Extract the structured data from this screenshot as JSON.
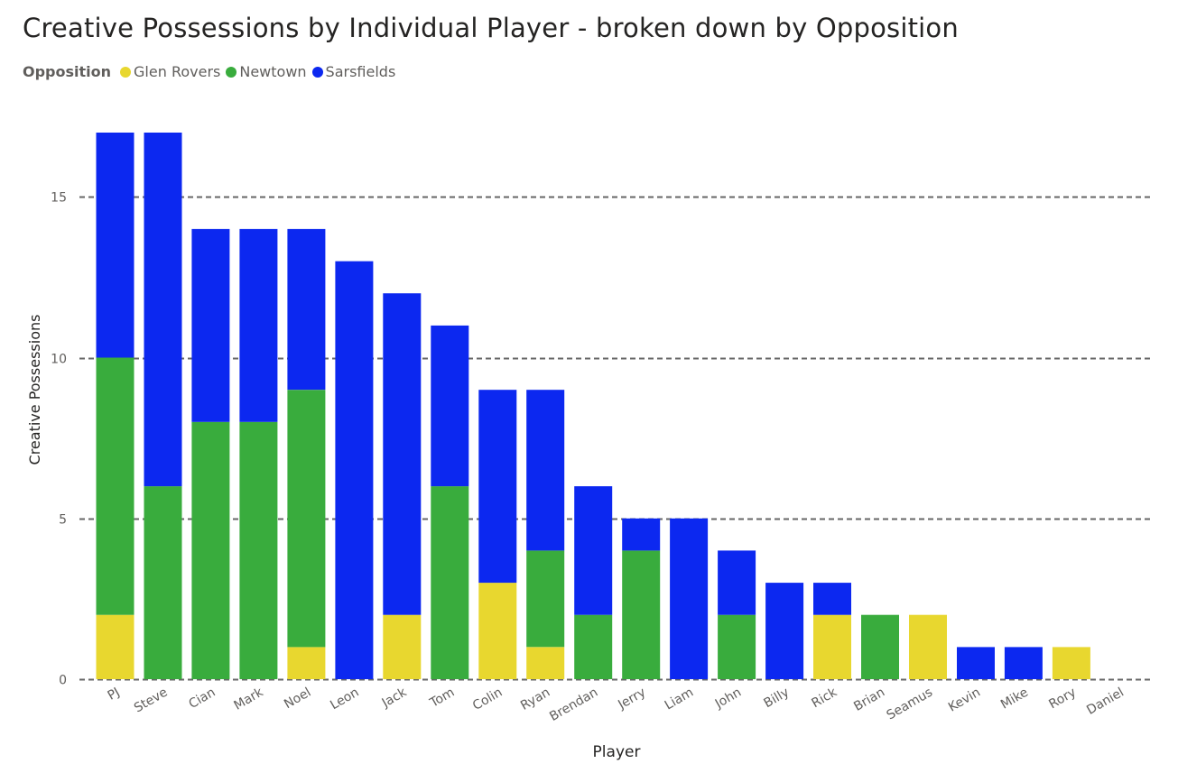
{
  "chart_data": {
    "type": "bar",
    "stacked": true,
    "title": "Creative Possessions by Individual Player - broken down by Opposition",
    "xlabel": "Player",
    "ylabel": "Creative Possessions",
    "legend_title": "Opposition",
    "legend_position": "top-left",
    "ylim": [
      0,
      17
    ],
    "yticks": [
      0,
      5,
      10,
      15
    ],
    "grid": "horizontal-dashed",
    "categories": [
      "PJ",
      "Steve",
      "Cian",
      "Mark",
      "Noel",
      "Leon",
      "Jack",
      "Tom",
      "Colin",
      "Ryan",
      "Brendan",
      "Jerry",
      "Liam",
      "John",
      "Billy",
      "Rick",
      "Brian",
      "Seamus",
      "Kevin",
      "Mike",
      "Rory",
      "Daniel"
    ],
    "series": [
      {
        "name": "Glen Rovers",
        "color": "#E8D72F",
        "values": [
          2,
          0,
          0,
          0,
          1,
          0,
          2,
          0,
          3,
          1,
          0,
          0,
          0,
          0,
          0,
          2,
          0,
          2,
          0,
          0,
          1,
          0
        ]
      },
      {
        "name": "Newtown",
        "color": "#39AC3D",
        "values": [
          8,
          6,
          8,
          8,
          8,
          0,
          0,
          6,
          0,
          3,
          2,
          4,
          0,
          2,
          0,
          0,
          2,
          0,
          0,
          0,
          0,
          0
        ]
      },
      {
        "name": "Sarsfields",
        "color": "#0C28F0",
        "values": [
          7,
          11,
          6,
          6,
          5,
          13,
          10,
          5,
          6,
          5,
          4,
          1,
          5,
          2,
          3,
          1,
          0,
          0,
          1,
          1,
          0,
          0
        ]
      }
    ]
  }
}
